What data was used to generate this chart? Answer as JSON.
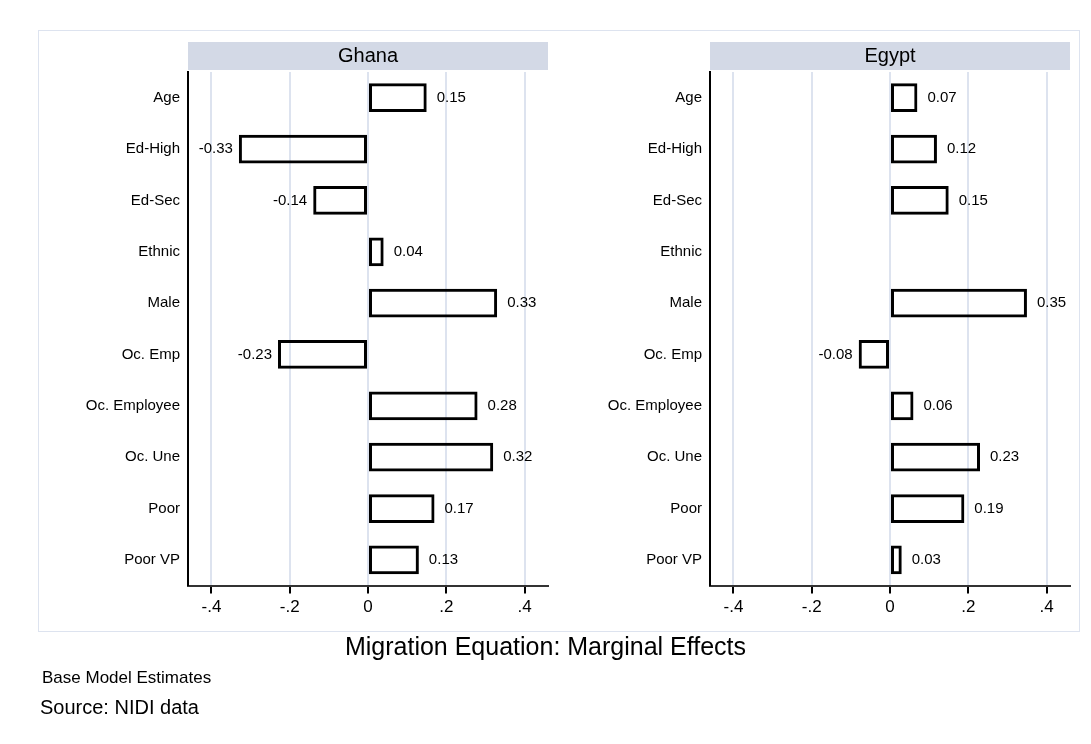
{
  "chart_data": [
    {
      "type": "bar",
      "orientation": "horizontal",
      "title": "Ghana",
      "categories": [
        "Age",
        "Ed-High",
        "Ed-Sec",
        "Ethnic",
        "Male",
        "Oc. Emp",
        "Oc. Employee",
        "Oc. Une",
        "Poor",
        "Poor VP"
      ],
      "values": [
        0.15,
        -0.33,
        -0.14,
        0.04,
        0.33,
        -0.23,
        0.28,
        0.32,
        0.17,
        0.13
      ],
      "color": "#000000",
      "data_labels": true,
      "xlim": [
        -0.46,
        0.46
      ],
      "xticks": [
        {
          "value": -0.4,
          "label": "-.4"
        },
        {
          "value": -0.2,
          "label": "-.2"
        },
        0,
        {
          "value": 0.2,
          "label": ".2"
        },
        {
          "value": 0.4,
          "label": ".4"
        }
      ],
      "grid": "x",
      "legend": false,
      "annotations": [
        "Migration Equation: Marginal Effects",
        "Base Model Estimates",
        "Source: NIDI data"
      ]
    },
    {
      "type": "bar",
      "orientation": "horizontal",
      "title": "Egypt",
      "categories": [
        "Age",
        "Ed-High",
        "Ed-Sec",
        "Ethnic",
        "Male",
        "Oc. Emp",
        "Oc. Employee",
        "Oc. Une",
        "Poor",
        "Poor VP"
      ],
      "values": [
        0.07,
        0.12,
        0.15,
        null,
        0.35,
        -0.08,
        0.06,
        0.23,
        0.19,
        0.03
      ],
      "color": "#000000",
      "data_labels": true,
      "xlim": [
        -0.46,
        0.46
      ],
      "xticks": [
        {
          "value": -0.4,
          "label": "-.4"
        },
        {
          "value": -0.2,
          "label": "-.2"
        },
        0,
        {
          "value": 0.2,
          "label": ".2"
        },
        {
          "value": 0.4,
          "label": ".4"
        }
      ],
      "grid": "x",
      "legend": false
    }
  ]
}
